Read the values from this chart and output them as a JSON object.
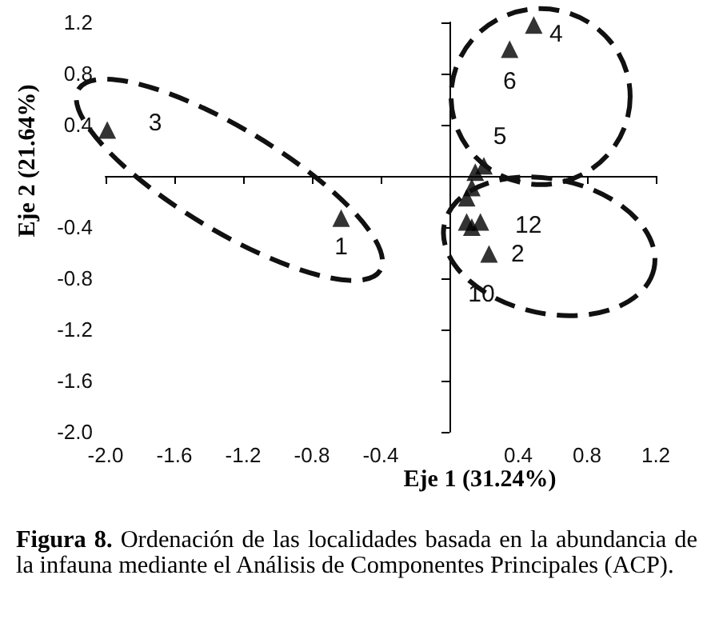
{
  "chart_data": {
    "type": "scatter",
    "xlabel": "Eje 1 (31.24%)",
    "ylabel": "Eje 2 (21.64%)",
    "annotations": [
      {
        "text": "1",
        "x": -0.63,
        "y": -0.33
      },
      {
        "text": "2",
        "x": 0.23,
        "y": -0.61
      },
      {
        "text": "3",
        "x": -1.99,
        "y": 0.36
      },
      {
        "text": "4",
        "x": 0.49,
        "y": 1.18
      },
      {
        "text": "5",
        "x": 0.2,
        "y": 0.08
      },
      {
        "text": "6",
        "x": 0.35,
        "y": 0.99
      },
      {
        "text": "10",
        "x": 0.13,
        "y": -0.4
      },
      {
        "text": "12",
        "x": 0.18,
        "y": -0.36
      },
      "Figura 8. Ordenación de las localidades basada en la abundancia de la infauna mediante el Análisis de Componentes Principales (ACP)."
    ],
    "x": [
      -0.63,
      0.23,
      -1.99,
      0.49,
      0.2,
      0.35,
      0.13,
      0.18,
      0.13,
      0.1,
      0.1,
      0.15
    ],
    "values": [
      -0.33,
      -0.61,
      0.36,
      1.18,
      0.08,
      0.99,
      -0.4,
      -0.36,
      -0.09,
      -0.17,
      -0.36,
      0.03
    ],
    "color": "#000000",
    "marker": "triangle",
    "xlim": [
      -2.0,
      1.2
    ],
    "ylim": [
      -2.0,
      1.2
    ],
    "xticks": [
      {
        "value": -2.0,
        "label": "-2.0"
      },
      {
        "value": -1.6,
        "label": "-1.6"
      },
      {
        "value": -1.2,
        "label": "-1.2"
      },
      {
        "value": -0.8,
        "label": "-0.8"
      },
      {
        "value": -0.4,
        "label": "-0.4"
      },
      {
        "value": 0.4,
        "label": "0.4"
      },
      {
        "value": 0.8,
        "label": "0.8"
      },
      {
        "value": 1.2,
        "label": "1.2"
      }
    ],
    "yticks": [
      {
        "value": 1.2,
        "label": "1.2"
      },
      {
        "value": 0.8,
        "label": "0.8"
      },
      {
        "value": 0.4,
        "label": "0.4"
      },
      {
        "value": -0.4,
        "label": "-0.4"
      },
      {
        "value": -0.8,
        "label": "-0.8"
      },
      {
        "value": -1.2,
        "label": "-1.2"
      },
      {
        "value": -1.6,
        "label": "-1.6"
      },
      {
        "value": -2.0,
        "label": "-2.0"
      }
    ],
    "grid": false
  }
}
